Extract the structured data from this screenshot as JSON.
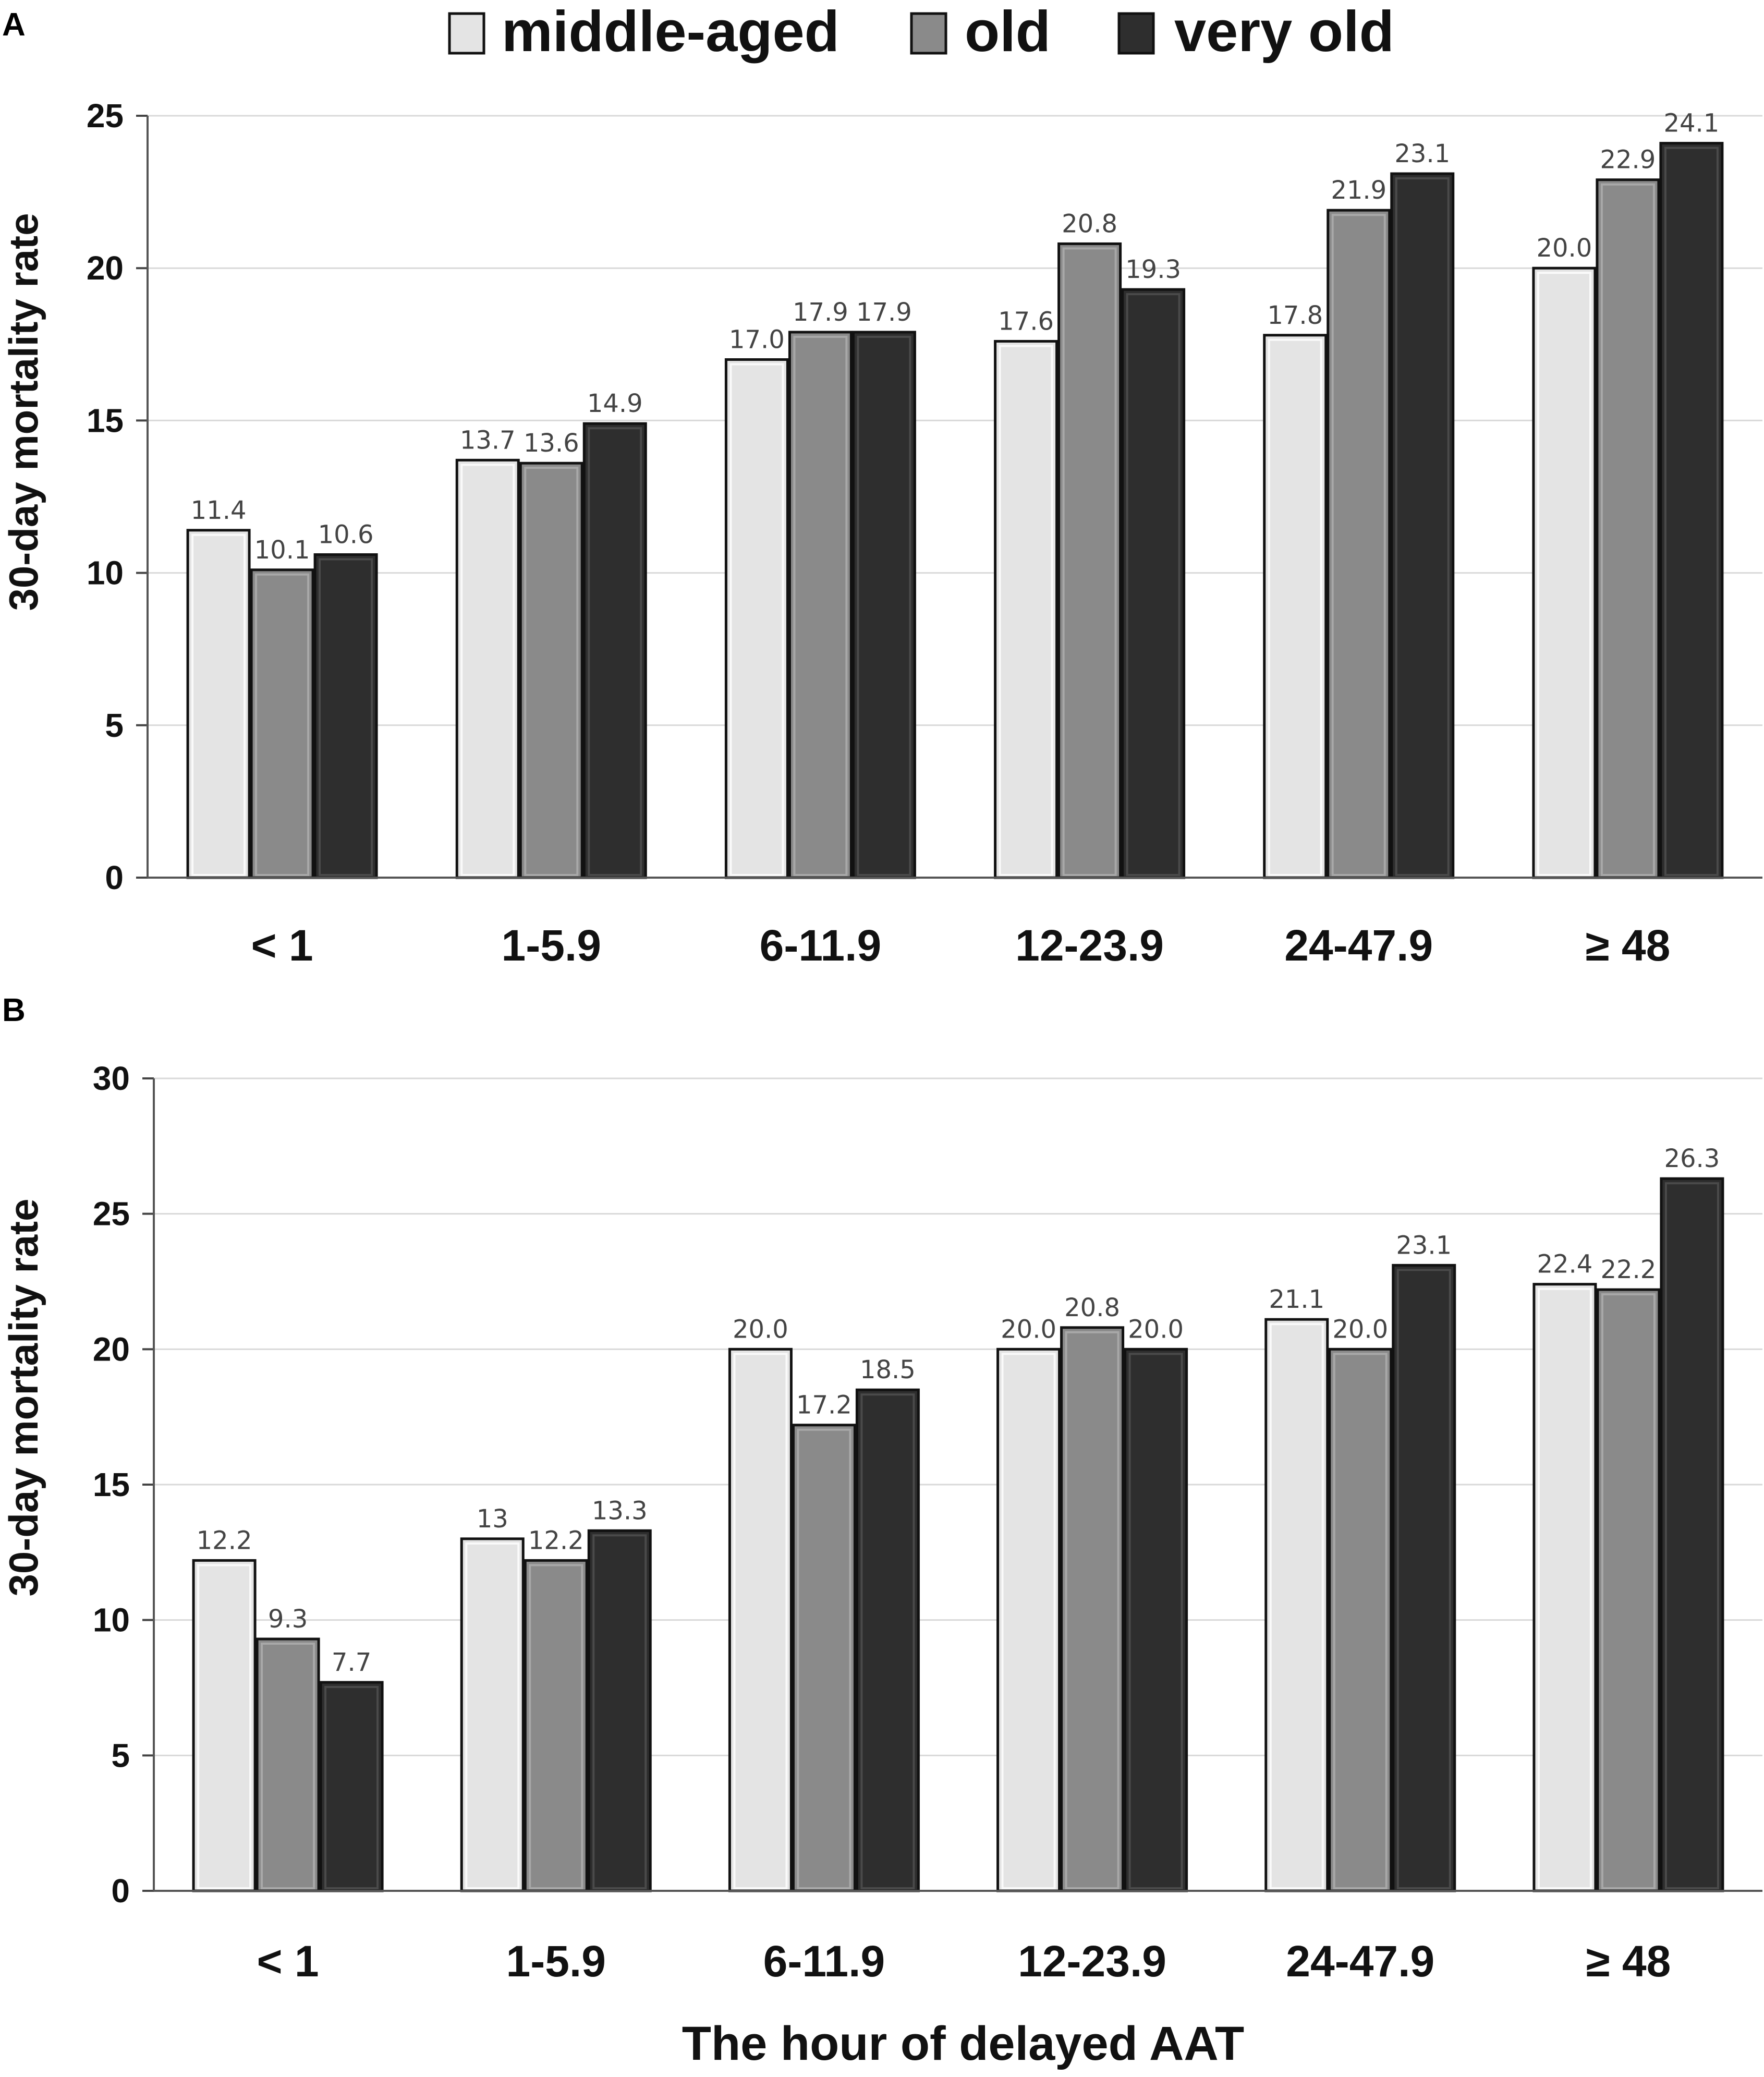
{
  "legend": [
    {
      "label": "middle-aged",
      "color": "#e4e4e4"
    },
    {
      "label": "old",
      "color": "#8a8a8a"
    },
    {
      "label": "very old",
      "color": "#2e2e2e"
    }
  ],
  "x_axis_title": "The hour of delayed AAT",
  "chart_data": [
    {
      "panel": "A",
      "type": "bar",
      "categories": [
        "< 1",
        "1-5.9",
        "6-11.9",
        "12-23.9",
        "24-47.9",
        "≥ 48"
      ],
      "series": [
        {
          "name": "middle-aged",
          "values": [
            11.4,
            13.7,
            17.0,
            17.6,
            17.8,
            20.0
          ],
          "labels": [
            "11.4",
            "13.7",
            "17.0",
            "17.6",
            "17.8",
            "20.0"
          ]
        },
        {
          "name": "old",
          "values": [
            10.1,
            13.6,
            17.9,
            20.8,
            21.9,
            22.9
          ],
          "labels": [
            "10.1",
            "13.6",
            "17.9",
            "20.8",
            "21.9",
            "22.9"
          ]
        },
        {
          "name": "very old",
          "values": [
            10.6,
            14.9,
            17.9,
            19.3,
            23.1,
            24.1
          ],
          "labels": [
            "10.6",
            "14.9",
            "17.9",
            "19.3",
            "23.1",
            "24.1"
          ]
        }
      ],
      "ylabel": "30-day mortality rate",
      "xlabel": "",
      "ylim": [
        0,
        25
      ],
      "yticks": [
        0,
        5,
        10,
        15,
        20,
        25
      ],
      "grid": true
    },
    {
      "panel": "B",
      "type": "bar",
      "categories": [
        "< 1",
        "1-5.9",
        "6-11.9",
        "12-23.9",
        "24-47.9",
        "≥ 48"
      ],
      "series": [
        {
          "name": "middle-aged",
          "values": [
            12.2,
            13,
            20.0,
            20.0,
            21.1,
            22.4
          ],
          "labels": [
            "12.2",
            "13",
            "20.0",
            "20.0",
            "21.1",
            "22.4"
          ]
        },
        {
          "name": "old",
          "values": [
            9.3,
            12.2,
            17.2,
            20.8,
            20.0,
            22.2
          ],
          "labels": [
            "9.3",
            "12.2",
            "17.2",
            "20.8",
            "20.0",
            "22.2"
          ]
        },
        {
          "name": "very old",
          "values": [
            7.7,
            13.3,
            18.5,
            20.0,
            23.1,
            26.3
          ],
          "labels": [
            "7.7",
            "13.3",
            "18.5",
            "20.0",
            "23.1",
            "26.3"
          ]
        }
      ],
      "ylabel": "30-day mortality rate",
      "xlabel": "The hour of delayed AAT",
      "ylim": [
        0,
        30
      ],
      "yticks": [
        0,
        5,
        10,
        15,
        20,
        25,
        30
      ],
      "grid": true
    }
  ]
}
